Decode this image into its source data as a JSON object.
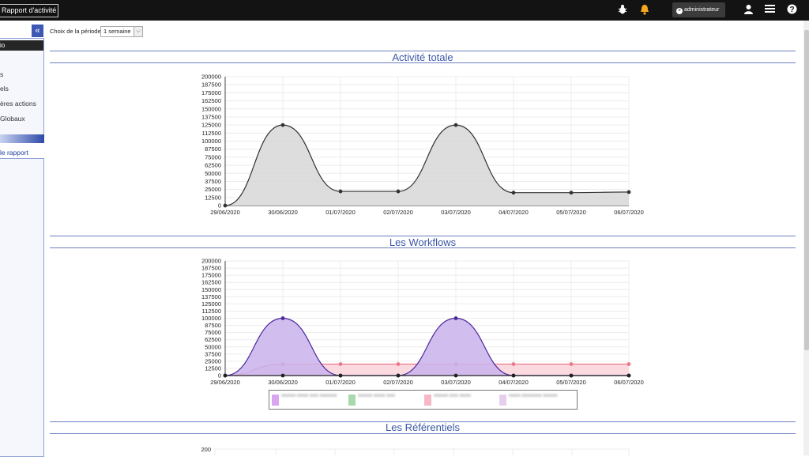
{
  "header": {
    "app_title": "Rapport d'activité",
    "user_label": "administrateur",
    "icons": [
      "bug-icon",
      "bell-icon",
      "user-icon",
      "hamburger-menu-icon",
      "help-icon"
    ],
    "bell_color": "#f5a623"
  },
  "sidebar": {
    "collapse_symbol": "«",
    "active_item": "io",
    "items": [
      {
        "label": "s"
      },
      {
        "label": "els"
      },
      {
        "label": "ères actions"
      },
      {
        "label": "Globaux"
      }
    ],
    "section_link": "le rapport"
  },
  "filter": {
    "label": "Choix de la période :",
    "selected": "1 semaine"
  },
  "sections": {
    "activite": "Activité totale",
    "workflows": "Les Workflows",
    "referentiels": "Les Référentiels"
  },
  "chart_data": [
    {
      "type": "area",
      "title": "Activité totale",
      "x": [
        "29/06/2020",
        "30/06/2020",
        "01/07/2020",
        "02/07/2020",
        "03/07/2020",
        "04/07/2020",
        "05/07/2020",
        "06/07/2020"
      ],
      "y_ticks": [
        0,
        12500,
        25000,
        37500,
        50000,
        62500,
        75000,
        87500,
        100000,
        112500,
        125000,
        137500,
        150000,
        162500,
        175000,
        187500,
        200000
      ],
      "ylim": [
        0,
        200000
      ],
      "grid": true,
      "series": [
        {
          "values": [
            0,
            125000,
            22000,
            22000,
            125000,
            20000,
            20000,
            21000
          ],
          "color": "#333333",
          "fill": "#d7d7d7"
        }
      ]
    },
    {
      "type": "area",
      "title": "Les Workflows",
      "x": [
        "29/06/2020",
        "30/06/2020",
        "01/07/2020",
        "02/07/2020",
        "03/07/2020",
        "04/07/2020",
        "05/07/2020",
        "06/07/2020"
      ],
      "y_ticks": [
        0,
        12500,
        25000,
        37500,
        50000,
        62500,
        75000,
        87500,
        100000,
        112500,
        125000,
        137500,
        150000,
        162500,
        175000,
        187500,
        200000
      ],
      "ylim": [
        0,
        200000
      ],
      "grid": true,
      "legend": "bottom",
      "series": [
        {
          "values": [
            0,
            20000,
            20000,
            20000,
            20000,
            20000,
            20000,
            20000
          ],
          "color": "#ea7a8a",
          "fill": "#fad3da"
        },
        {
          "values": [
            0,
            100000,
            0,
            0,
            100000,
            0,
            0,
            0
          ],
          "color": "#4a2a9a",
          "fill": "#c9b3ec"
        },
        {
          "values": [
            0,
            0,
            0,
            0,
            0,
            0,
            0,
            0
          ],
          "color": "#222222",
          "fill": "none"
        }
      ],
      "legend_colors": [
        "#d7a6ef",
        "#a8d8ac",
        "#f6b8c4",
        "#e6cfee"
      ]
    },
    {
      "type": "area",
      "title": "Les Référentiels",
      "y_ticks": [
        200
      ],
      "grid": true,
      "series": []
    }
  ]
}
